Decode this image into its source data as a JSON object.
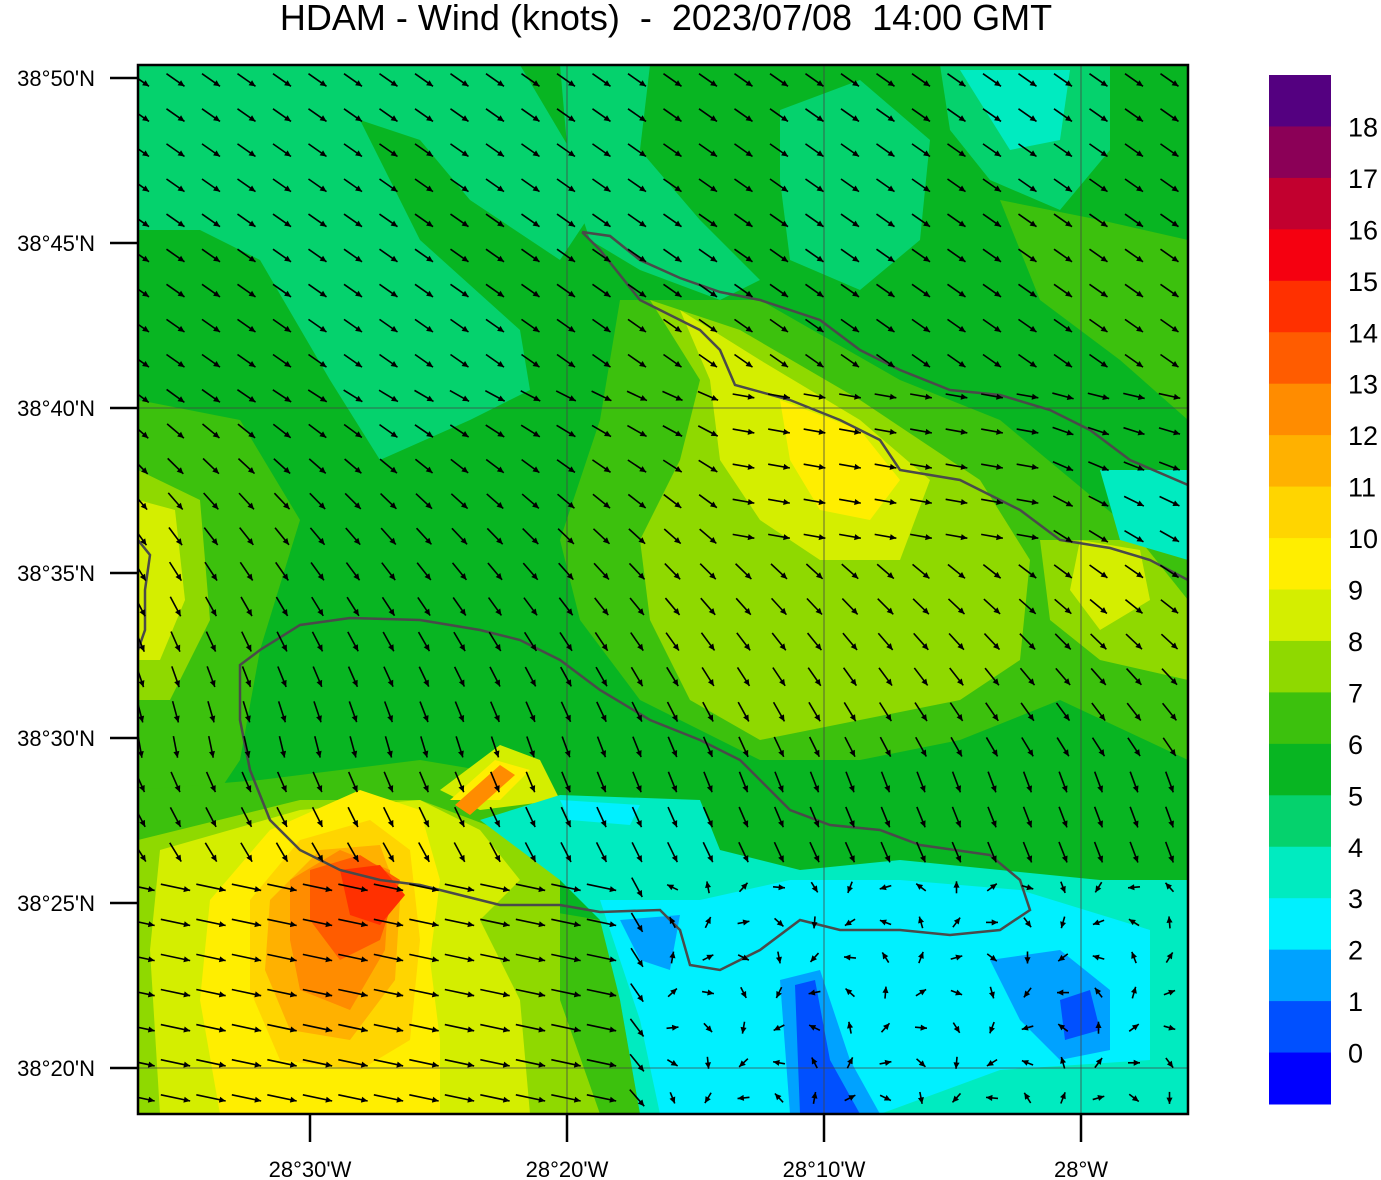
{
  "title": "HDAM - Wind (knots)  -  2023/07/08  14:00 GMT",
  "map": {
    "lat_ticks": [
      "38°50'N",
      "38°45'N",
      "38°40'N",
      "38°35'N",
      "38°30'N",
      "38°25'N",
      "38°20'N"
    ],
    "lon_ticks": [
      "28°30'W",
      "28°20'W",
      "28°10'W",
      "28°W"
    ],
    "grid": true,
    "land_outline_color": "#4a4a4a"
  },
  "colorbar": {
    "labels": [
      "18",
      "17",
      "16",
      "15",
      "14",
      "13",
      "12",
      "11",
      "10",
      "9",
      "8",
      "7",
      "6",
      "5",
      "4",
      "3",
      "2",
      "1",
      "0"
    ],
    "colors": [
      "#540080",
      "#8B0057",
      "#C2002F",
      "#F50010",
      "#FF3000",
      "#FF5C00",
      "#FF8C00",
      "#FFB100",
      "#FFD500",
      "#FFEE00",
      "#D4EE00",
      "#8FD900",
      "#3CC10D",
      "#08B522",
      "#05D26D",
      "#00EBC0",
      "#00F0FF",
      "#00A2FF",
      "#0050FF",
      "#0000FF"
    ]
  }
}
